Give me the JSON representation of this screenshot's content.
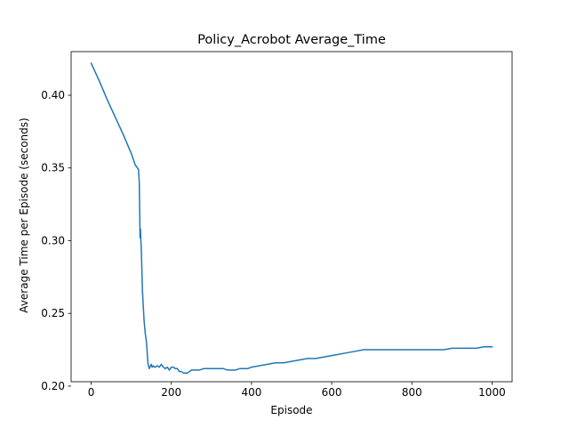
{
  "chart_data": {
    "type": "line",
    "title": "Policy_Acrobot Average_Time",
    "xlabel": "Episode",
    "ylabel": "Average Time per Episode (seconds)",
    "xlim": [
      -50,
      1050
    ],
    "ylim": [
      0.203,
      0.43
    ],
    "grid": false,
    "x_ticks": [
      0,
      200,
      400,
      600,
      800,
      1000
    ],
    "x_tick_labels": [
      "0",
      "200",
      "400",
      "600",
      "800",
      "1000"
    ],
    "y_ticks": [
      0.2,
      0.25,
      0.3,
      0.35,
      0.4
    ],
    "y_tick_labels": [
      "0.20",
      "0.25",
      "0.30",
      "0.35",
      "0.40"
    ],
    "series": [
      {
        "color": "#1f77b4",
        "x": [
          0,
          20,
          40,
          60,
          80,
          100,
          110,
          118,
          120,
          121,
          122,
          123,
          124,
          125,
          126,
          128,
          130,
          132,
          135,
          138,
          140,
          142,
          145,
          148,
          150,
          152,
          155,
          158,
          160,
          165,
          170,
          175,
          180,
          185,
          190,
          195,
          200,
          205,
          210,
          215,
          220,
          225,
          230,
          235,
          240,
          245,
          250,
          255,
          260,
          270,
          280,
          290,
          300,
          310,
          320,
          330,
          340,
          350,
          360,
          370,
          380,
          390,
          400,
          420,
          440,
          460,
          480,
          500,
          520,
          540,
          560,
          580,
          600,
          620,
          640,
          660,
          680,
          700,
          720,
          740,
          760,
          780,
          800,
          820,
          840,
          860,
          880,
          900,
          920,
          940,
          960,
          980,
          1000
        ],
        "y": [
          0.422,
          0.41,
          0.397,
          0.385,
          0.373,
          0.36,
          0.352,
          0.349,
          0.34,
          0.32,
          0.302,
          0.308,
          0.3,
          0.295,
          0.285,
          0.265,
          0.255,
          0.245,
          0.236,
          0.23,
          0.222,
          0.215,
          0.212,
          0.214,
          0.215,
          0.213,
          0.214,
          0.213,
          0.213,
          0.214,
          0.213,
          0.215,
          0.213,
          0.212,
          0.213,
          0.211,
          0.213,
          0.213,
          0.212,
          0.212,
          0.21,
          0.21,
          0.209,
          0.209,
          0.209,
          0.21,
          0.211,
          0.211,
          0.211,
          0.211,
          0.212,
          0.212,
          0.212,
          0.212,
          0.212,
          0.212,
          0.211,
          0.211,
          0.211,
          0.212,
          0.212,
          0.212,
          0.213,
          0.214,
          0.215,
          0.216,
          0.216,
          0.217,
          0.218,
          0.219,
          0.219,
          0.22,
          0.221,
          0.222,
          0.223,
          0.224,
          0.225,
          0.225,
          0.225,
          0.225,
          0.225,
          0.225,
          0.225,
          0.225,
          0.225,
          0.225,
          0.225,
          0.226,
          0.226,
          0.226,
          0.226,
          0.227,
          0.227
        ]
      }
    ]
  }
}
